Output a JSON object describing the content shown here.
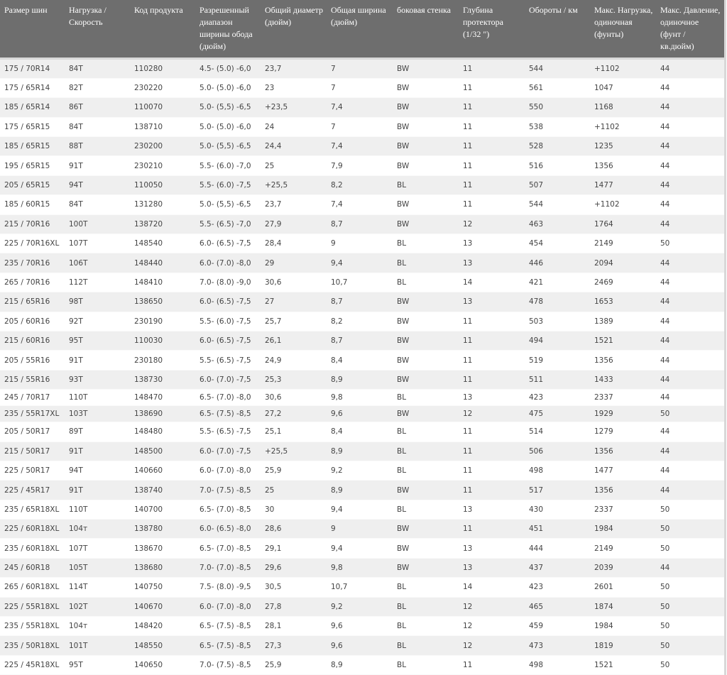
{
  "table": {
    "headers": [
      "Размер шин",
      "Нагрузка / Скорость",
      "Код продукта",
      "Разрешенный диапазон ширины обода (дюйм)",
      "Общий диаметр (дюйм)",
      "Общая ширина (дюйм)",
      "боковая стенка",
      "Глубина протектора (1/32 \")",
      "Обороты / км",
      "Макс. Нагрузка, одиночная (фунты)",
      "Макс. Давление, одиночное (фунт / кв.дюйм)"
    ],
    "rows": [
      [
        "175 / 70R14",
        "84T",
        "110280",
        "4.5- (5.0) -6,0",
        "23,7",
        "7",
        "BW",
        "11",
        "544",
        "+1102",
        "44"
      ],
      [
        "175 / 65R14",
        "82T",
        "230220",
        "5.0- (5.0) -6,0",
        "23",
        "7",
        "BW",
        "11",
        "561",
        "1047",
        "44"
      ],
      [
        "185 / 65R14",
        "86T",
        "110070",
        "5.0- (5,5) -6,5",
        "+23,5",
        "7,4",
        "BW",
        "11",
        "550",
        "1168",
        "44"
      ],
      [
        "175 / 65R15",
        "84T",
        "138710",
        "5.0- (5.0) -6,0",
        "24",
        "7",
        "BW",
        "11",
        "538",
        "+1102",
        "44"
      ],
      [
        "185 / 65R15",
        "88T",
        "230200",
        "5.0- (5,5) -6,5",
        "24,4",
        "7,4",
        "BW",
        "11",
        "528",
        "1235",
        "44"
      ],
      [
        "195 / 65R15",
        "91T",
        "230210",
        "5.5- (6.0) -7,0",
        "25",
        "7,9",
        "BW",
        "11",
        "516",
        "1356",
        "44"
      ],
      [
        "205 / 65R15",
        "94T",
        "110050",
        "5.5- (6.0) -7,5",
        "+25,5",
        "8,2",
        "BL",
        "11",
        "507",
        "1477",
        "44"
      ],
      [
        "185 / 60R15",
        "84T",
        "131280",
        "5.0- (5,5) -6,5",
        "23,7",
        "7,4",
        "BW",
        "11",
        "544",
        "+1102",
        "44"
      ],
      [
        "215 / 70R16",
        "100T",
        "138720",
        "5.5- (6.5) -7,0",
        "27,9",
        "8,7",
        "BW",
        "12",
        "463",
        "1764",
        "44"
      ],
      [
        "225 / 70R16XL",
        "107T",
        "148540",
        "6.0- (6.5) -7,5",
        "28,4",
        "9",
        "BL",
        "13",
        "454",
        "2149",
        "50"
      ],
      [
        "235 / 70R16",
        "106T",
        "148440",
        "6.0- (7.0) -8,0",
        "29",
        "9,4",
        "BL",
        "13",
        "446",
        "2094",
        "44"
      ],
      [
        "265 / 70R16",
        "112T",
        "148410",
        "7.0- (8.0) -9,0",
        "30,6",
        "10,7",
        "BL",
        "14",
        "421",
        "2469",
        "44"
      ],
      [
        "215 / 65R16",
        "98T",
        "138650",
        "6.0- (6.5) -7,5",
        "27",
        "8,7",
        "BW",
        "13",
        "478",
        "1653",
        "44"
      ],
      [
        "205 / 60R16",
        "92T",
        "230190",
        "5.5- (6.0) -7,5",
        "25,7",
        "8,2",
        "BW",
        "11",
        "503",
        "1389",
        "44"
      ],
      [
        "215 / 60R16",
        "95T",
        "110030",
        "6.0- (6.5) -7,5",
        "26,1",
        "8,7",
        "BW",
        "11",
        "494",
        "1521",
        "44"
      ],
      [
        "205 / 55R16",
        "91T",
        "230180",
        "5.5- (6.5) -7,5",
        "24,9",
        "8,4",
        "BW",
        "11",
        "519",
        "1356",
        "44"
      ],
      [
        "215 / 55R16",
        "93T",
        "138730",
        "6.0- (7.0) -7,5",
        "25,3",
        "8,9",
        "BW",
        "11",
        "511",
        "1433",
        "44"
      ],
      [
        "245 / 70R17",
        "110T",
        "148470",
        "6.5- (7.0) -8,0",
        "30,6",
        "9,8",
        "BL",
        "13",
        "423",
        "2337",
        "44"
      ],
      [
        "235 / 55R17XL",
        "103T",
        "138690",
        "6.5- (7.5) -8,5",
        "27,2",
        "9,6",
        "BW",
        "12",
        "475",
        "1929",
        "50"
      ],
      [
        "205 / 50R17",
        "89T",
        "148480",
        "5.5- (6.5) -7,5",
        "25,1",
        "8,4",
        "BL",
        "11",
        "514",
        "1279",
        "44"
      ],
      [
        "215 / 50R17",
        "91T",
        "148500",
        "6.0- (7.0) -7,5",
        "+25,5",
        "8,9",
        "BL",
        "11",
        "506",
        "1356",
        "44"
      ],
      [
        "225 / 50R17",
        "94T",
        "140660",
        "6.0- (7.0) -8,0",
        "25,9",
        "9,2",
        "BL",
        "11",
        "498",
        "1477",
        "44"
      ],
      [
        "225 / 45R17",
        "91T",
        "138740",
        "7.0- (7.5) -8,5",
        "25",
        "8,9",
        "BW",
        "11",
        "517",
        "1356",
        "44"
      ],
      [
        "235 / 65R18XL",
        "110T",
        "140700",
        "6.5- (7.0) -8,5",
        "30",
        "9,4",
        "BL",
        "13",
        "430",
        "2337",
        "50"
      ],
      [
        "225 / 60R18XL",
        "104т",
        "138780",
        "6.0- (6.5) -8,0",
        "28,6",
        "9",
        "BW",
        "11",
        "451",
        "1984",
        "50"
      ],
      [
        "235 / 60R18XL",
        "107T",
        "138670",
        "6.5- (7.0) -8,5",
        "29,1",
        "9,4",
        "BW",
        "13",
        "444",
        "2149",
        "50"
      ],
      [
        "245 / 60R18",
        "105T",
        "138680",
        "7.0- (7.0) -8,5",
        "29,6",
        "9,8",
        "BW",
        "13",
        "437",
        "2039",
        "44"
      ],
      [
        "265 / 60R18XL",
        "114T",
        "140750",
        "7.5- (8.0) -9,5",
        "30,5",
        "10,7",
        "BL",
        "14",
        "423",
        "2601",
        "50"
      ],
      [
        "225 / 55R18XL",
        "102T",
        "140670",
        "6.0- (7.0) -8,0",
        "27,8",
        "9,2",
        "BL",
        "12",
        "465",
        "1874",
        "50"
      ],
      [
        "235 / 55R18XL",
        "104т",
        "148420",
        "6.5- (7.5) -8,5",
        "28,1",
        "9,6",
        "BL",
        "12",
        "459",
        "1984",
        "50"
      ],
      [
        "235 / 50R18XL",
        "101T",
        "148550",
        "6.5- (7.5) -8,5",
        "27,3",
        "9,6",
        "BL",
        "12",
        "473",
        "1819",
        "50"
      ],
      [
        "225 / 45R18XL",
        "95T",
        "140650",
        "7.0- (7.5) -8,5",
        "25,9",
        "8,9",
        "BL",
        "11",
        "498",
        "1521",
        "50"
      ]
    ]
  },
  "colors": {
    "header_bg": "#6e6e6e",
    "stripe": "#efefef",
    "text": "#444444"
  }
}
